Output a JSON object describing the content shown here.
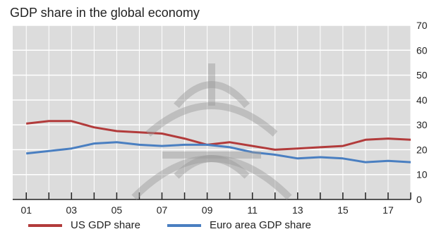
{
  "chart_data": {
    "type": "line",
    "title": "GDP share in the global economy",
    "xlabel": "",
    "ylabel": "",
    "x": [
      2001,
      2002,
      2003,
      2004,
      2005,
      2006,
      2007,
      2008,
      2009,
      2010,
      2011,
      2012,
      2013,
      2014,
      2015,
      2016,
      2017,
      2018
    ],
    "x_tick_labels": [
      "01",
      "03",
      "05",
      "07",
      "09",
      "11",
      "13",
      "15",
      "17"
    ],
    "x_tick_values": [
      2001,
      2003,
      2005,
      2007,
      2009,
      2011,
      2013,
      2015,
      2017
    ],
    "xlim": [
      2000.4,
      2018.0
    ],
    "ylim": [
      0,
      70
    ],
    "y_ticks": [
      0,
      10,
      20,
      30,
      40,
      50,
      60,
      70
    ],
    "y_axis_side": "right",
    "grid": true,
    "legend_position": "bottom",
    "series": [
      {
        "name": "US GDP share",
        "color": "#b23b3b",
        "values": [
          30.5,
          31.5,
          31.5,
          29,
          27.5,
          27,
          26.5,
          24.5,
          22,
          23,
          21.5,
          20,
          20.5,
          21,
          21.5,
          24,
          24.5,
          24
        ]
      },
      {
        "name": "Euro area GDP share",
        "color": "#4a7fc1",
        "values": [
          18.5,
          19.5,
          20.5,
          22.5,
          23,
          22,
          21.5,
          22,
          22,
          21,
          19,
          18,
          16.5,
          17,
          16.5,
          15,
          15.5,
          15
        ]
      }
    ]
  },
  "colors": {
    "plot_background": "#dcdcdc",
    "gridline": "#ffffff",
    "axis": "#222222"
  },
  "watermark": "logo-watermark"
}
